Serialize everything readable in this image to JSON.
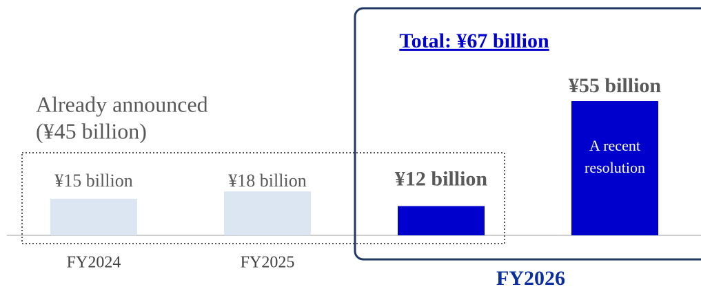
{
  "chart_data": {
    "type": "bar",
    "categories": [
      "FY2024",
      "FY2025",
      null,
      null
    ],
    "group_label": "FY2026",
    "values": [
      15,
      18,
      12,
      55
    ],
    "value_labels": [
      "¥15 billion",
      "¥18 billion",
      "¥12 billion",
      "¥55  billion"
    ],
    "colors": [
      "#dce6f2",
      "#dce6f2",
      "#0000cc",
      "#0000cc"
    ],
    "already_announced": [
      "Already announced",
      "(¥45 billion)"
    ],
    "total": "Total: ¥67 billion",
    "bar_note": [
      "A recent",
      "resolution"
    ]
  }
}
